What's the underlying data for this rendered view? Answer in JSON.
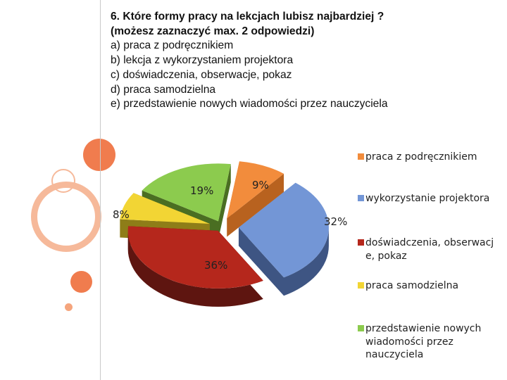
{
  "question": {
    "title": "6. Które formy pracy na lekcjach lubisz najbardziej ?",
    "note": "(możesz zaznaczyć max. 2 odpowiedzi)",
    "options": [
      "a) praca z podręcznikiem",
      "b) lekcja z wykorzystaniem projektora",
      "c) doświadczenia, obserwacje, pokaz",
      "d) praca samodzielna",
      "e) przedstawienie nowych wiadomości przez nauczyciela"
    ]
  },
  "chart_data": {
    "type": "pie",
    "style": "3d-exploded",
    "legend_position": "right",
    "series": [
      {
        "label": "praca z podręcznikiem",
        "value": 9,
        "label_text": "9%",
        "color": "#F28C3C",
        "side": "#B8621F"
      },
      {
        "label": "wykorzystanie projektora",
        "value": 32,
        "label_text": "32%",
        "color": "#7396D6",
        "side": "#3E5583"
      },
      {
        "label": "doświadczenia, obserwacje, pokaz",
        "value": 36,
        "label_text": "36%",
        "color": "#B5271C",
        "side": "#5E1510"
      },
      {
        "label": "praca samodzielna",
        "value": 8,
        "label_text": "8%",
        "color": "#F2D534",
        "side": "#8E7D18"
      },
      {
        "label": "przedstawienie nowych wiadomości przez nauczyciela",
        "value": 19,
        "label_text": "19%",
        "color": "#8CCB4E",
        "side": "#4A6E22"
      }
    ]
  },
  "legend": [
    {
      "text": "praca z podręcznikiem",
      "color": "#F28C3C"
    },
    {
      "text": "wykorzystanie projektora",
      "color": "#7396D6"
    },
    {
      "text": "doświadczenia, obserwacje, pokaz",
      "color": "#B5271C"
    },
    {
      "text": "praca samodzielna",
      "color": "#F2D534"
    },
    {
      "text": "przedstawienie nowych wiadomości przez nauczyciela",
      "color": "#8CCB4E"
    }
  ],
  "decor_colors": {
    "orange": "#F07C4E",
    "peach": "#F5A57D",
    "ring": "#F6B99A"
  }
}
